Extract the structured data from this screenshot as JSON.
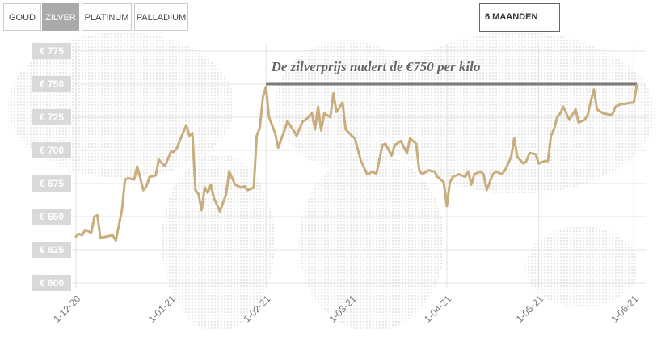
{
  "tabs": {
    "items": [
      "GOUD",
      "ZILVER",
      "PLATINUM",
      "PALLADIUM"
    ],
    "selected": 1
  },
  "period": "6 MAANDEN",
  "chart_data": {
    "type": "line",
    "annotation": {
      "text": "De zilverprijs nadert de €750 per kilo",
      "value": 750,
      "x": [
        "2021-02-01",
        "2021-06-02"
      ]
    },
    "color": "#c9ad7c",
    "x": [
      "2020-12-01",
      "2020-12-02",
      "2020-12-03",
      "2020-12-04",
      "2020-12-06",
      "2020-12-07",
      "2020-12-08",
      "2020-12-09",
      "2020-12-11",
      "2020-12-13",
      "2020-12-14",
      "2020-12-16",
      "2020-12-17",
      "2020-12-18",
      "2020-12-20",
      "2020-12-21",
      "2020-12-23",
      "2020-12-24",
      "2020-12-25",
      "2020-12-27",
      "2020-12-28",
      "2020-12-30",
      "2021-01-01",
      "2021-01-02",
      "2021-01-03",
      "2021-01-04",
      "2021-01-06",
      "2021-01-07",
      "2021-01-08",
      "2021-01-09",
      "2021-01-10",
      "2021-01-11",
      "2021-01-12",
      "2021-01-13",
      "2021-01-14",
      "2021-01-15",
      "2021-01-17",
      "2021-01-19",
      "2021-01-20",
      "2021-01-22",
      "2021-01-24",
      "2021-01-25",
      "2021-01-26",
      "2021-01-28",
      "2021-01-29",
      "2021-01-30",
      "2021-01-31",
      "2021-02-01",
      "2021-02-02",
      "2021-02-04",
      "2021-02-05",
      "2021-02-07",
      "2021-02-08",
      "2021-02-10",
      "2021-02-11",
      "2021-02-13",
      "2021-02-14",
      "2021-02-16",
      "2021-02-17",
      "2021-02-18",
      "2021-02-19",
      "2021-02-20",
      "2021-02-22",
      "2021-02-23",
      "2021-02-24",
      "2021-02-26",
      "2021-02-27",
      "2021-03-01",
      "2021-03-02",
      "2021-03-04",
      "2021-03-06",
      "2021-03-08",
      "2021-03-09",
      "2021-03-11",
      "2021-03-12",
      "2021-03-14",
      "2021-03-15",
      "2021-03-17",
      "2021-03-19",
      "2021-03-20",
      "2021-03-22",
      "2021-03-23",
      "2021-03-24",
      "2021-03-26",
      "2021-03-28",
      "2021-03-29",
      "2021-03-31",
      "2021-04-01",
      "2021-04-02",
      "2021-04-03",
      "2021-04-05",
      "2021-04-07",
      "2021-04-08",
      "2021-04-09",
      "2021-04-10",
      "2021-04-12",
      "2021-04-13",
      "2021-04-14",
      "2021-04-16",
      "2021-04-17",
      "2021-04-19",
      "2021-04-20",
      "2021-04-22",
      "2021-04-23",
      "2021-04-24",
      "2021-04-26",
      "2021-04-27",
      "2021-04-28",
      "2021-04-30",
      "2021-05-01",
      "2021-05-03",
      "2021-05-04",
      "2021-05-05",
      "2021-05-06",
      "2021-05-07",
      "2021-05-08",
      "2021-05-09",
      "2021-05-10",
      "2021-05-11",
      "2021-05-13",
      "2021-05-14",
      "2021-05-16",
      "2021-05-17",
      "2021-05-18",
      "2021-05-19",
      "2021-05-20",
      "2021-05-22",
      "2021-05-24",
      "2021-05-25",
      "2021-05-26",
      "2021-05-28",
      "2021-05-29",
      "2021-05-31",
      "2021-06-01",
      "2021-06-02"
    ],
    "values": [
      635,
      637,
      636,
      640,
      638,
      650,
      651,
      634,
      635,
      636,
      632,
      655,
      678,
      679,
      678,
      688,
      670,
      673,
      680,
      681,
      693,
      688,
      699,
      699,
      702,
      708,
      719,
      711,
      713,
      670,
      667,
      655,
      672,
      668,
      674,
      664,
      654,
      667,
      684,
      674,
      672,
      673,
      670,
      672,
      711,
      717,
      740,
      748,
      725,
      713,
      702,
      715,
      722,
      715,
      711,
      722,
      723,
      728,
      716,
      733,
      715,
      728,
      725,
      743,
      729,
      736,
      716,
      711,
      709,
      692,
      682,
      684,
      682,
      704,
      705,
      696,
      704,
      707,
      698,
      709,
      705,
      685,
      682,
      685,
      684,
      680,
      676,
      658,
      676,
      680,
      682,
      680,
      684,
      674,
      682,
      684,
      682,
      670,
      682,
      684,
      682,
      685,
      695,
      709,
      695,
      690,
      692,
      698,
      697,
      690,
      692,
      692,
      711,
      716,
      725,
      728,
      733,
      728,
      723,
      731,
      721,
      723,
      727,
      737,
      746,
      731,
      728,
      727,
      727,
      733,
      735,
      735,
      736,
      736,
      749
    ],
    "xlim": [
      "2020-12-01",
      "2021-06-02"
    ],
    "xticks": [
      {
        "value": "2020-12-01",
        "label": "1-12-20"
      },
      {
        "value": "2021-01-01",
        "label": "1-01-21"
      },
      {
        "value": "2021-02-01",
        "label": "1-02-21"
      },
      {
        "value": "2021-03-01",
        "label": "1-03-21"
      },
      {
        "value": "2021-04-01",
        "label": "1-04-21"
      },
      {
        "value": "2021-05-01",
        "label": "1-05-21"
      },
      {
        "value": "2021-06-01",
        "label": "1-06-21"
      }
    ],
    "ylim": [
      600,
      775
    ],
    "yticks": [
      {
        "value": 775,
        "label": "€ 775"
      },
      {
        "value": 750,
        "label": "€ 750"
      },
      {
        "value": 725,
        "label": "€ 725"
      },
      {
        "value": 700,
        "label": "€ 700"
      },
      {
        "value": 675,
        "label": "€ 675"
      },
      {
        "value": 650,
        "label": "€ 650"
      },
      {
        "value": 625,
        "label": "€ 625"
      },
      {
        "value": 600,
        "label": "€ 600"
      }
    ],
    "grid": true
  }
}
